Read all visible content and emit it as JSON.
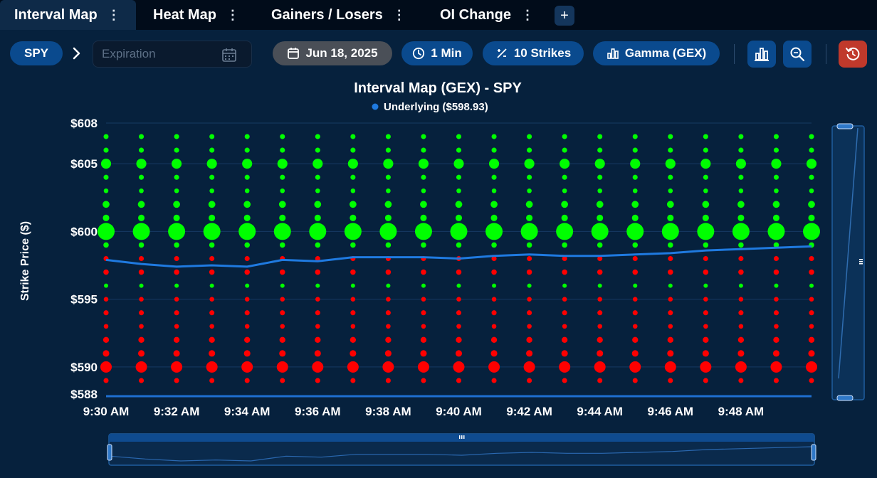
{
  "tabs": [
    {
      "label": "Interval Map",
      "active": true
    },
    {
      "label": "Heat Map",
      "active": false
    },
    {
      "label": "Gainers / Losers",
      "active": false
    },
    {
      "label": "OI Change",
      "active": false
    }
  ],
  "add_tab_label": "+",
  "toolbar": {
    "symbol": "SPY",
    "expiration_placeholder": "Expiration",
    "date": "Jun 18, 2025",
    "interval": "1 Min",
    "strikes": "10 Strikes",
    "metric": "Gamma (GEX)"
  },
  "colors": {
    "positive": "#00ff00",
    "negative": "#ff0000",
    "underlying_line": "#1f7ae0",
    "background": "#06213d",
    "pill": "#0a4a8e",
    "reset": "#c0392b"
  },
  "icons": [
    "calendar-icon",
    "clock-icon",
    "strikes-icon",
    "bar-chart-icon",
    "zoom-icon",
    "reset-icon"
  ],
  "chart_data": {
    "type": "scatter",
    "title": "Interval Map (GEX) - SPY",
    "legend": "Underlying ($598.93)",
    "ylabel": "Strike Price ($)",
    "xlabel": "",
    "ylim": [
      588,
      608
    ],
    "y_tick_labels": [
      "$608",
      "$605",
      "$600",
      "$595",
      "$590",
      "$588"
    ],
    "y_ticks": [
      608,
      605,
      600,
      595,
      590,
      588
    ],
    "x_tick_labels": [
      "9:30 AM",
      "9:32 AM",
      "9:34 AM",
      "9:36 AM",
      "9:38 AM",
      "9:40 AM",
      "9:42 AM",
      "9:44 AM",
      "9:46 AM",
      "9:48 AM"
    ],
    "times": [
      "9:30",
      "9:31",
      "9:32",
      "9:33",
      "9:34",
      "9:35",
      "9:36",
      "9:37",
      "9:38",
      "9:39",
      "9:40",
      "9:41",
      "9:42",
      "9:43",
      "9:44",
      "9:45",
      "9:46",
      "9:47",
      "9:48",
      "9:49",
      "9:50"
    ],
    "strikes": [
      {
        "strike": 607,
        "sign": "pos",
        "size": 0.05
      },
      {
        "strike": 606,
        "sign": "pos",
        "size": 0.05
      },
      {
        "strike": 605,
        "sign": "pos",
        "size": 0.3
      },
      {
        "strike": 604,
        "sign": "pos",
        "size": 0.05
      },
      {
        "strike": 603,
        "sign": "pos",
        "size": 0.04
      },
      {
        "strike": 602,
        "sign": "pos",
        "size": 0.12
      },
      {
        "strike": 601,
        "sign": "pos",
        "size": 0.1
      },
      {
        "strike": 600,
        "sign": "pos",
        "size": 1.0
      },
      {
        "strike": 599,
        "sign": "pos",
        "size": 0.06
      },
      {
        "strike": 598,
        "sign": "neg",
        "size": 0.05
      },
      {
        "strike": 597,
        "sign": "neg",
        "size": 0.06
      },
      {
        "strike": 596,
        "sign": "pos",
        "size": 0.03
      },
      {
        "strike": 595,
        "sign": "neg",
        "size": 0.04
      },
      {
        "strike": 594,
        "sign": "neg",
        "size": 0.05
      },
      {
        "strike": 593,
        "sign": "neg",
        "size": 0.04
      },
      {
        "strike": 592,
        "sign": "neg",
        "size": 0.08
      },
      {
        "strike": 591,
        "sign": "neg",
        "size": 0.1
      },
      {
        "strike": 590,
        "sign": "neg",
        "size": 0.4
      },
      {
        "strike": 589,
        "sign": "neg",
        "size": 0.05
      }
    ],
    "underlying": [
      597.9,
      597.6,
      597.4,
      597.5,
      597.4,
      597.9,
      597.8,
      598.1,
      598.1,
      598.1,
      598.0,
      598.2,
      598.3,
      598.2,
      598.2,
      598.3,
      598.4,
      598.6,
      598.7,
      598.8,
      598.9
    ]
  }
}
